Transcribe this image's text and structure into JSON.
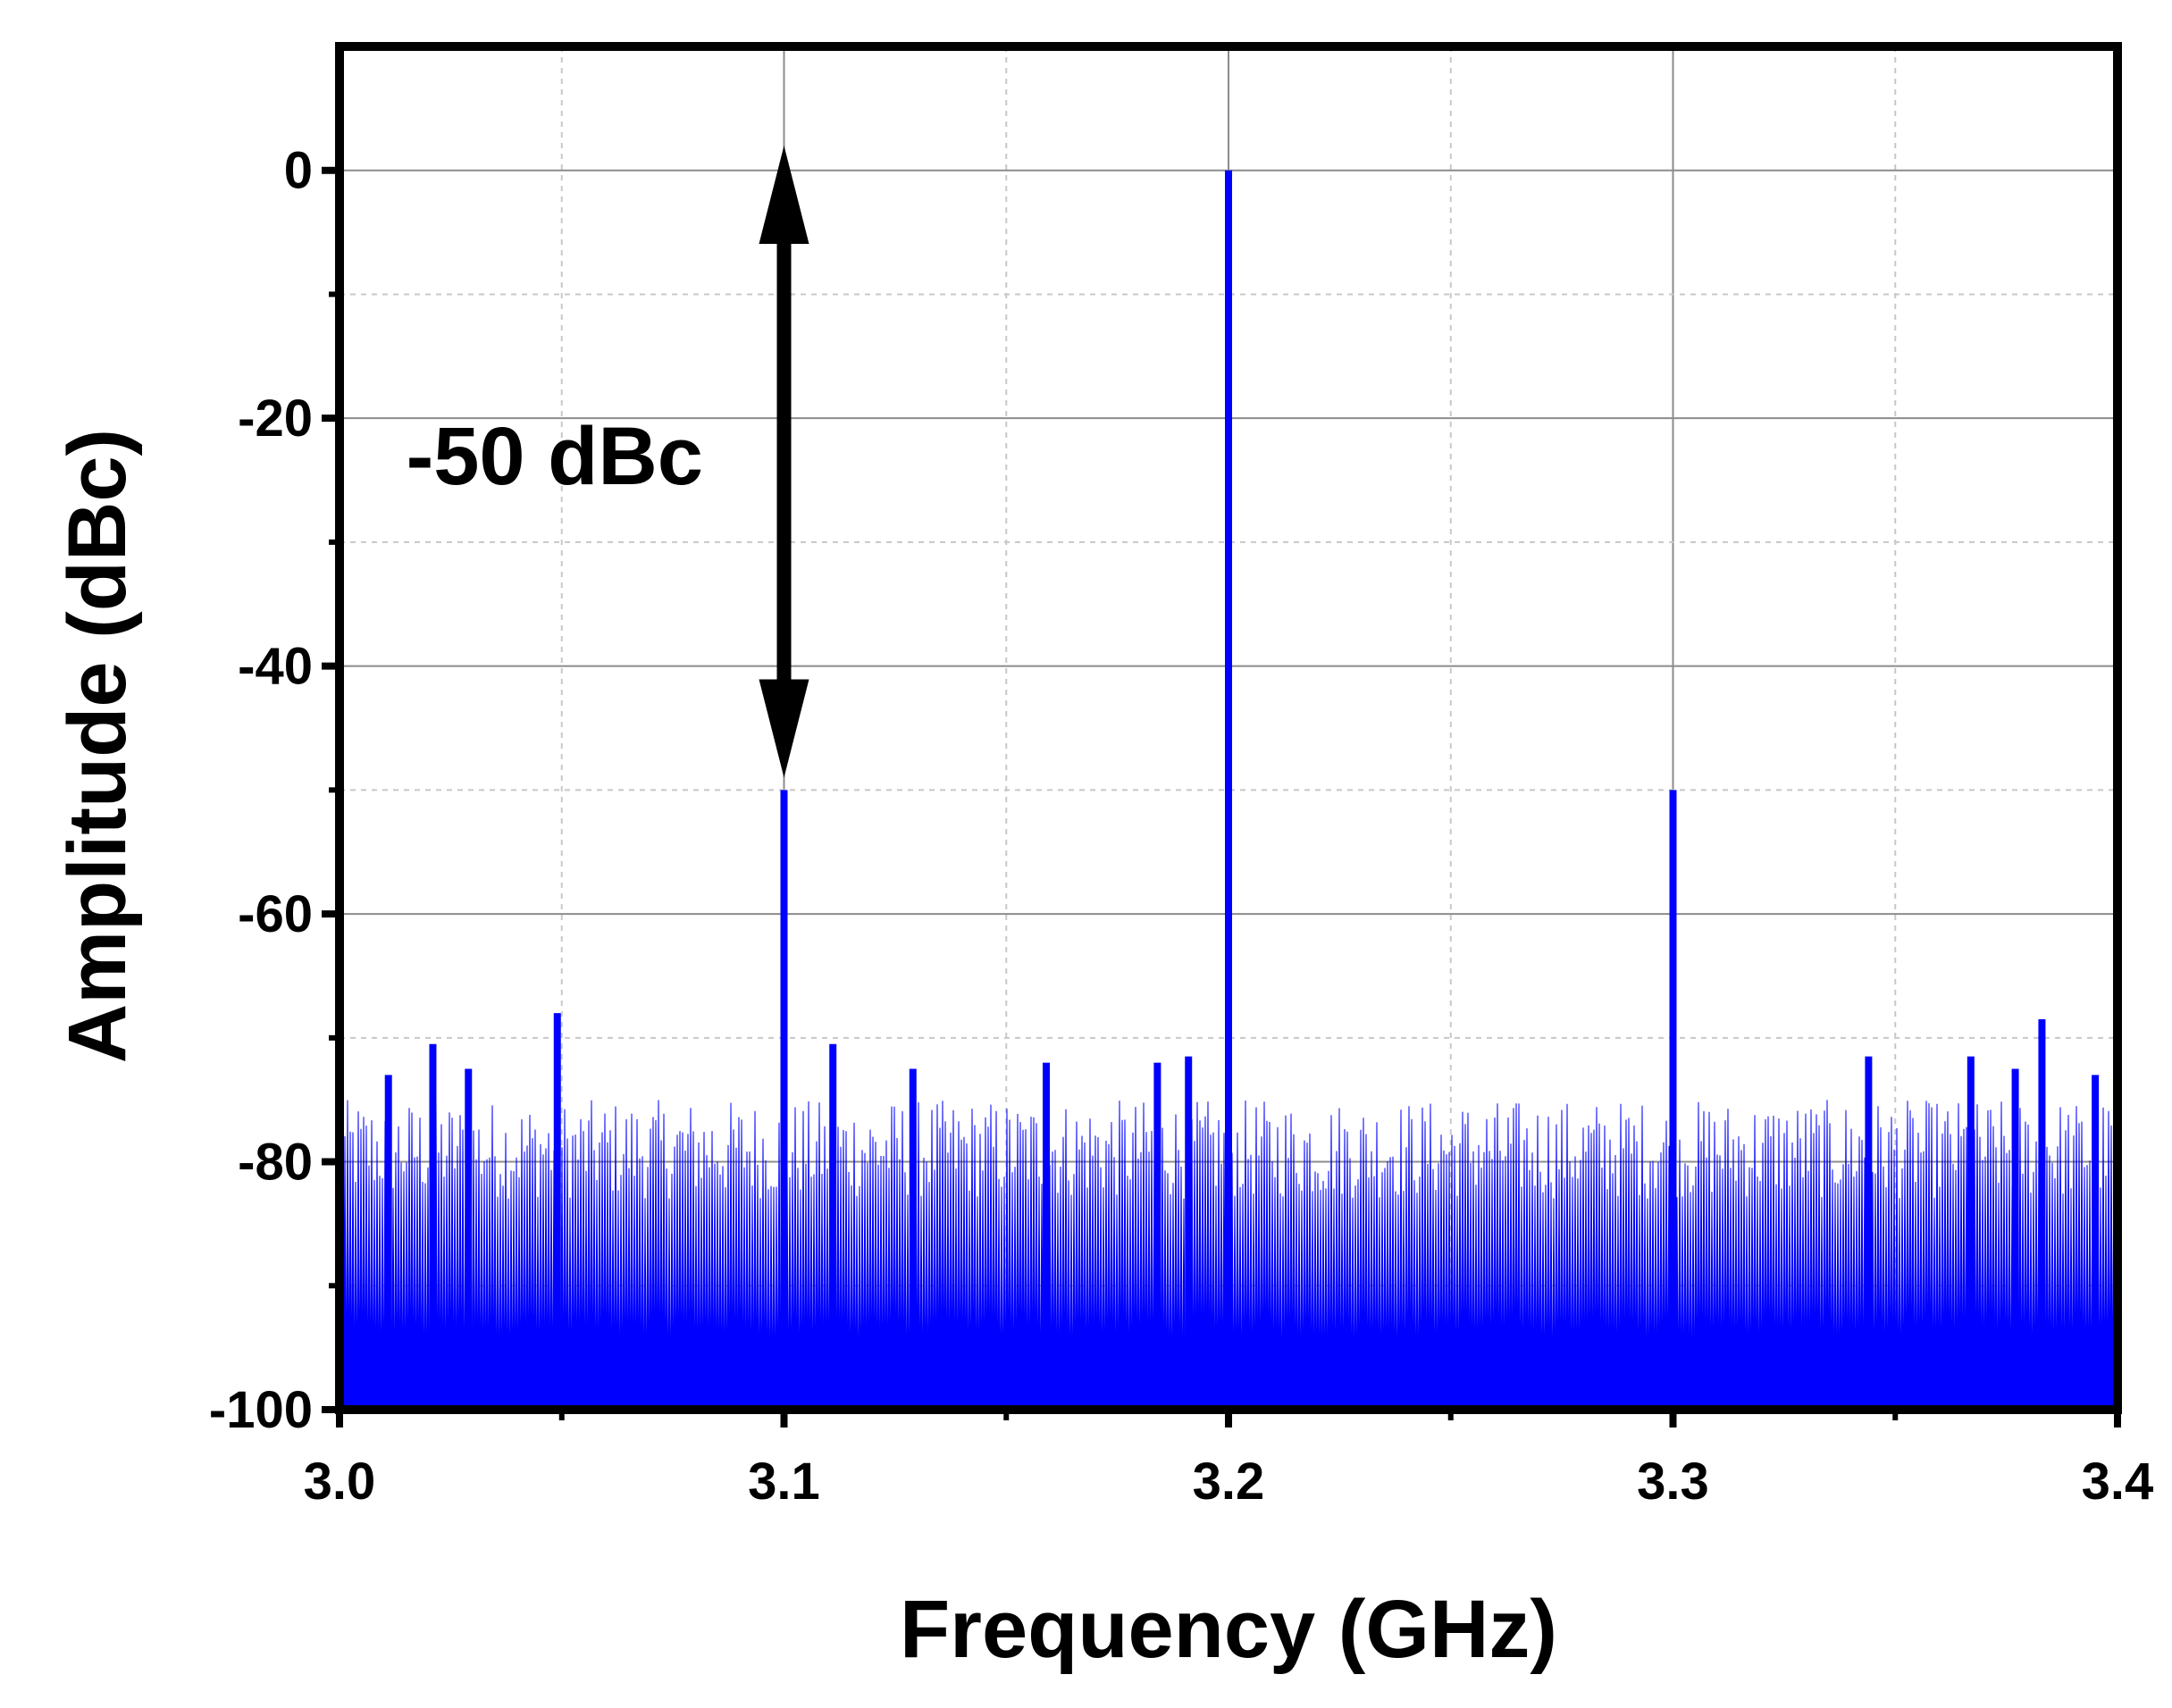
{
  "chart_data": {
    "type": "line",
    "xlabel": "Frequency (GHz)",
    "ylabel": "Amplitude (dBc)",
    "xlim": [
      3.0,
      3.4
    ],
    "ylim": [
      -100,
      10
    ],
    "xticks": [
      {
        "value": 3.0,
        "label": "3.0"
      },
      {
        "value": 3.1,
        "label": "3.1"
      },
      {
        "value": 3.2,
        "label": "3.2"
      },
      {
        "value": 3.3,
        "label": "3.3"
      },
      {
        "value": 3.4,
        "label": "3.4"
      }
    ],
    "yticks": [
      {
        "value": 0,
        "label": "0"
      },
      {
        "value": -20,
        "label": "-20"
      },
      {
        "value": -40,
        "label": "-40"
      },
      {
        "value": -60,
        "label": "-60"
      },
      {
        "value": -80,
        "label": "-80"
      },
      {
        "value": -100,
        "label": "-100"
      }
    ],
    "grid": true,
    "series": [
      {
        "color": "#0000ff",
        "baseline": -100,
        "noise_floor_range": [
          -83,
          -75
        ],
        "peaks": [
          {
            "x": 3.2,
            "y": 0
          },
          {
            "x": 3.1,
            "y": -50
          },
          {
            "x": 3.3,
            "y": -50
          },
          {
            "x": 3.049,
            "y": -68
          },
          {
            "x": 3.383,
            "y": -68.5
          },
          {
            "x": 3.021,
            "y": -70.5
          },
          {
            "x": 3.111,
            "y": -70.5
          },
          {
            "x": 3.344,
            "y": -71.5
          },
          {
            "x": 3.159,
            "y": -72
          },
          {
            "x": 3.184,
            "y": -72
          },
          {
            "x": 3.191,
            "y": -71.5
          },
          {
            "x": 3.367,
            "y": -71.5
          },
          {
            "x": 3.011,
            "y": -73
          },
          {
            "x": 3.029,
            "y": -72.5
          },
          {
            "x": 3.129,
            "y": -72.5
          },
          {
            "x": 3.377,
            "y": -72.5
          },
          {
            "x": 3.395,
            "y": -73
          }
        ]
      }
    ],
    "annotations": [
      {
        "type": "double-arrow",
        "x": 3.1,
        "y_from": 2,
        "y_to": -49
      },
      {
        "type": "text",
        "text": "-50 dBc",
        "x": 3.015,
        "y": -23
      }
    ]
  }
}
